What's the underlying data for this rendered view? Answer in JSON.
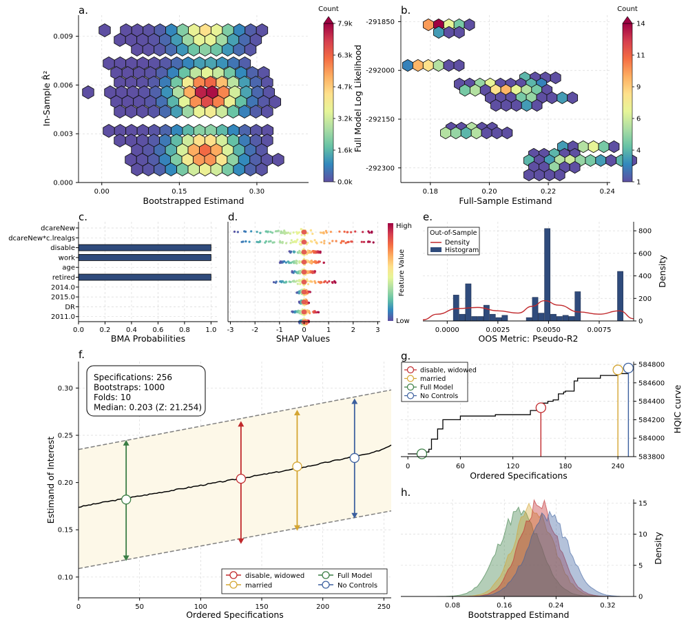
{
  "colors": {
    "bar": "#2f4b7c",
    "density": "#c0282b",
    "band_fill": "#fdf8e8",
    "band_edge": "#7f7f7f",
    "disable_widowed": "#c0282b",
    "married": "#d4a531",
    "full_model": "#3a7d44",
    "no_controls": "#3b5f9e",
    "median_line": "#000000",
    "colormap": [
      "#5e4fa2",
      "#3288bd",
      "#66c2a5",
      "#abdda4",
      "#e6f598",
      "#fee08b",
      "#fdae61",
      "#f46d43",
      "#d53e4f",
      "#9e0142"
    ]
  },
  "panel_labels": [
    "a.",
    "b.",
    "c.",
    "d.",
    "e.",
    "f.",
    "g.",
    "h."
  ],
  "chart_data": [
    {
      "id": "a",
      "type": "hexbin",
      "xlabel": "Bootstrapped Estimand",
      "ylabel": "In-Sample R̂²",
      "xlim": [
        -0.045,
        0.4
      ],
      "ylim": [
        0,
        0.0103
      ],
      "xticks": [
        0.0,
        0.15,
        0.3
      ],
      "xtick_labels": [
        "0.00",
        "0.15",
        "0.30"
      ],
      "yticks": [
        0,
        0.003,
        0.006,
        0.009
      ],
      "ytick_labels": [
        "0.000",
        "0.003",
        "0.006",
        "0.009"
      ],
      "colorbar": {
        "label": "Count",
        "ticks": [
          "0.0k",
          "1.6k",
          "3.2k",
          "4.7k",
          "6.3k",
          "7.9k"
        ],
        "max": 7900
      },
      "clusters": [
        {
          "center_x": 0.2,
          "center_y": 0.0093,
          "spread_x": 0.065,
          "peak": 0.55
        },
        {
          "center_x": 0.205,
          "center_y": 0.0055,
          "spread_x": 0.07,
          "peak": 1.0
        },
        {
          "center_x": 0.2,
          "center_y": 0.0018,
          "spread_x": 0.07,
          "peak": 0.8
        }
      ]
    },
    {
      "id": "b",
      "type": "hexbin",
      "xlabel": "Full-Sample Estimand",
      "ylabel": "Full Model Log Likelihood",
      "xlim": [
        0.17,
        0.241
      ],
      "ylim": [
        -292345,
        -291830
      ],
      "xticks": [
        0.18,
        0.2,
        0.22,
        0.24
      ],
      "xtick_labels": [
        "0.18",
        "0.20",
        "0.22",
        "0.24"
      ],
      "yticks": [
        -291850,
        -292000,
        -292150,
        -292300
      ],
      "ytick_labels": [
        "-291850",
        "-292000",
        "-292150",
        "-292300"
      ],
      "colorbar": {
        "label": "Count",
        "ticks": [
          "1",
          "4",
          "6",
          "9",
          "11",
          "14"
        ],
        "max": 14
      }
    },
    {
      "id": "c",
      "type": "bar",
      "orientation": "horizontal",
      "categories": [
        "dcareNew",
        "dcareNew*c.lrealgs",
        "disable",
        "work",
        "age",
        "retired",
        "2014.0",
        "2015.0",
        "DR",
        "2011.0"
      ],
      "values": [
        0.0,
        0.0,
        1.0,
        1.0,
        0.0,
        1.0,
        0.0,
        0.0,
        0.0,
        0.0
      ],
      "xlabel": "BMA Probabilities",
      "xlim": [
        0,
        1.05
      ],
      "xtick_labels": [
        "0.0",
        "0.2",
        "0.4",
        "0.6",
        "0.8",
        "1.0"
      ]
    },
    {
      "id": "d",
      "type": "scatter",
      "xlabel": "SHAP Values",
      "xlim": [
        -3.1,
        3.1
      ],
      "xtick_labels": [
        "-3",
        "-2",
        "-1",
        "0",
        "1",
        "2",
        "3"
      ],
      "colorbar": {
        "label": "Feature Value",
        "high": "High",
        "low": "Low"
      },
      "rows": [
        {
          "min": -2.9,
          "max": 2.8
        },
        {
          "min": -3.0,
          "max": 2.85
        },
        {
          "min": -0.6,
          "max": 0.7
        },
        {
          "min": -1.0,
          "max": 0.9
        },
        {
          "min": -0.5,
          "max": 0.5
        },
        {
          "min": -1.3,
          "max": 1.3
        },
        {
          "min": -0.3,
          "max": 0.25
        },
        {
          "min": -0.2,
          "max": 0.2
        },
        {
          "min": -0.5,
          "max": 0.6
        },
        {
          "min": -0.2,
          "max": 0.2
        }
      ]
    },
    {
      "id": "e",
      "type": "histogram",
      "xlabel": "OOS Metric: Pseudo-R2",
      "ylabel": "Density",
      "xlim": [
        -0.0012,
        0.0092
      ],
      "ylim": [
        0,
        880
      ],
      "xticks": [
        0,
        0.0025,
        0.005,
        0.0075
      ],
      "xtick_labels": [
        "0.0000",
        "0.0025",
        "0.0050",
        "0.0075"
      ],
      "yticks": [
        0,
        200,
        400,
        600,
        800
      ],
      "ytick_labels": [
        "0",
        "200",
        "400",
        "600",
        "800"
      ],
      "legend_title": "Out-of-Sample",
      "legend": [
        "Density",
        "Histogram"
      ],
      "bin_left": [
        0.0003,
        0.0006,
        0.0009,
        0.0012,
        0.0015,
        0.0018,
        0.0021,
        0.0024,
        0.0027,
        0.0039,
        0.0042,
        0.0045,
        0.0048,
        0.0051,
        0.0054,
        0.0057,
        0.006,
        0.0063,
        0.0084
      ],
      "bin_width": 0.00028,
      "bin_values": [
        230,
        60,
        330,
        40,
        40,
        140,
        60,
        30,
        50,
        30,
        210,
        70,
        820,
        60,
        40,
        50,
        40,
        260,
        440
      ],
      "density_x": [
        -0.0012,
        -0.0005,
        0.0005,
        0.0015,
        0.0025,
        0.0035,
        0.0042,
        0.0048,
        0.0055,
        0.0065,
        0.0075,
        0.0085,
        0.0092
      ],
      "density_y": [
        10,
        60,
        110,
        120,
        90,
        70,
        130,
        180,
        140,
        80,
        60,
        90,
        20
      ]
    },
    {
      "id": "f",
      "type": "line",
      "xlabel": "Ordered Specifications",
      "ylabel": "Estimand of Interest",
      "xlim": [
        0,
        256
      ],
      "ylim": [
        0.078,
        0.328
      ],
      "xticks": [
        0,
        50,
        100,
        150,
        200,
        250
      ],
      "xtick_labels": [
        "0",
        "50",
        "100",
        "150",
        "200",
        "250"
      ],
      "yticks": [
        0.1,
        0.15,
        0.2,
        0.25,
        0.3
      ],
      "ytick_labels": [
        "0.10",
        "0.15",
        "0.20",
        "0.25",
        "0.30"
      ],
      "median_x": [
        0,
        20,
        60,
        100,
        140,
        180,
        220,
        240,
        250,
        256
      ],
      "median_y": [
        0.174,
        0.179,
        0.188,
        0.197,
        0.206,
        0.215,
        0.226,
        0.231,
        0.236,
        0.24
      ],
      "upper_x": [
        0,
        256
      ],
      "upper_y": [
        0.235,
        0.298
      ],
      "lower_x": [
        0,
        256
      ],
      "lower_y": [
        0.109,
        0.17
      ],
      "markers": [
        {
          "name": "Full Model",
          "x": 39,
          "y": 0.182,
          "lo": 0.117,
          "hi": 0.245,
          "color_key": "full_model"
        },
        {
          "name": "disable, widowed",
          "x": 133,
          "y": 0.204,
          "lo": 0.135,
          "hi": 0.265,
          "color_key": "disable_widowed"
        },
        {
          "name": "married",
          "x": 179,
          "y": 0.217,
          "lo": 0.149,
          "hi": 0.277,
          "color_key": "married"
        },
        {
          "name": "No Controls",
          "x": 226,
          "y": 0.226,
          "lo": 0.162,
          "hi": 0.289,
          "color_key": "no_controls"
        }
      ],
      "info_box": [
        "Specifications: 256",
        "Bootstraps: 1000",
        "Folds: 10",
        "Median: 0.203 (Z: 21.254)"
      ],
      "legend": [
        "disable, widowed",
        "married",
        "Full Model",
        "No Controls"
      ]
    },
    {
      "id": "g",
      "type": "step",
      "xlabel": "Ordered Specifications",
      "ylabel": "HQIC curve",
      "xlim": [
        -8,
        258
      ],
      "ylim": [
        583800,
        584830
      ],
      "xticks": [
        0,
        60,
        120,
        180,
        240
      ],
      "xtick_labels": [
        "0",
        "60",
        "120",
        "180",
        "240"
      ],
      "yticks": [
        583800,
        584000,
        584200,
        584400,
        584600,
        584800
      ],
      "ytick_labels": [
        "583800",
        "584000",
        "584200",
        "584400",
        "584600",
        "584800"
      ],
      "curve_x": [
        0,
        16,
        24,
        27,
        34,
        40,
        60,
        100,
        140,
        152,
        160,
        166,
        172,
        178,
        180,
        190,
        194,
        220,
        240,
        252
      ],
      "curve_y": [
        583830,
        583850,
        583880,
        583990,
        584100,
        584200,
        584240,
        584255,
        584300,
        584380,
        584400,
        584415,
        584480,
        584500,
        584510,
        584620,
        584650,
        584680,
        584700,
        584760
      ],
      "markers": [
        {
          "name": "disable, widowed",
          "x": 152,
          "y": 584330,
          "color_key": "disable_widowed"
        },
        {
          "name": "married",
          "x": 240,
          "y": 584740,
          "color_key": "married"
        },
        {
          "name": "Full Model",
          "x": 16,
          "y": 583830,
          "color_key": "full_model"
        },
        {
          "name": "No Controls",
          "x": 252,
          "y": 584760,
          "color_key": "no_controls"
        }
      ],
      "legend": [
        "disable, widowed",
        "married",
        "Full Model",
        "No Controls"
      ]
    },
    {
      "id": "h",
      "type": "area",
      "xlabel": "Bootstrapped Estimand",
      "ylabel": "Density",
      "xlim": [
        0.0,
        0.36
      ],
      "ylim": [
        0,
        15.6
      ],
      "xticks": [
        0.08,
        0.16,
        0.24,
        0.32
      ],
      "xtick_labels": [
        "0.08",
        "0.16",
        "0.24",
        "0.32"
      ],
      "yticks": [
        0,
        5,
        10,
        15
      ],
      "ytick_labels": [
        "0",
        "5",
        "10",
        "15"
      ],
      "series": [
        {
          "name": "Full Model",
          "color_key": "full_model",
          "mean": 0.183,
          "sd": 0.032,
          "peak": 13.5
        },
        {
          "name": "married",
          "color_key": "married",
          "mean": 0.205,
          "sd": 0.03,
          "peak": 14.5
        },
        {
          "name": "disable, widowed",
          "color_key": "disable_widowed",
          "mean": 0.213,
          "sd": 0.029,
          "peak": 15.0
        },
        {
          "name": "No Controls",
          "color_key": "no_controls",
          "mean": 0.228,
          "sd": 0.032,
          "peak": 13.0
        }
      ]
    }
  ]
}
